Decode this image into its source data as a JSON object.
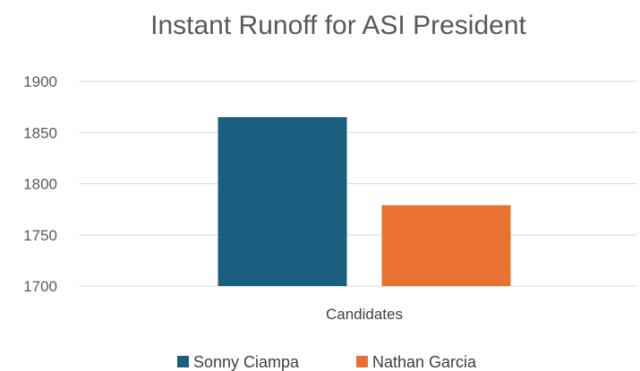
{
  "chart_data": {
    "type": "bar",
    "title": "Instant Runoff for ASI President",
    "categories": [
      "Candidates"
    ],
    "series": [
      {
        "name": "Sonny Ciampa",
        "values": [
          1865
        ],
        "color": "#1a5e80"
      },
      {
        "name": "Nathan Garcia",
        "values": [
          1779
        ],
        "color": "#e97132"
      }
    ],
    "xlabel": "",
    "ylabel": "",
    "ylim": [
      1700,
      1900
    ],
    "yticks": [
      "1700",
      "1750",
      "1800",
      "1850",
      "1900"
    ],
    "grid": true,
    "legend": "bottom"
  }
}
